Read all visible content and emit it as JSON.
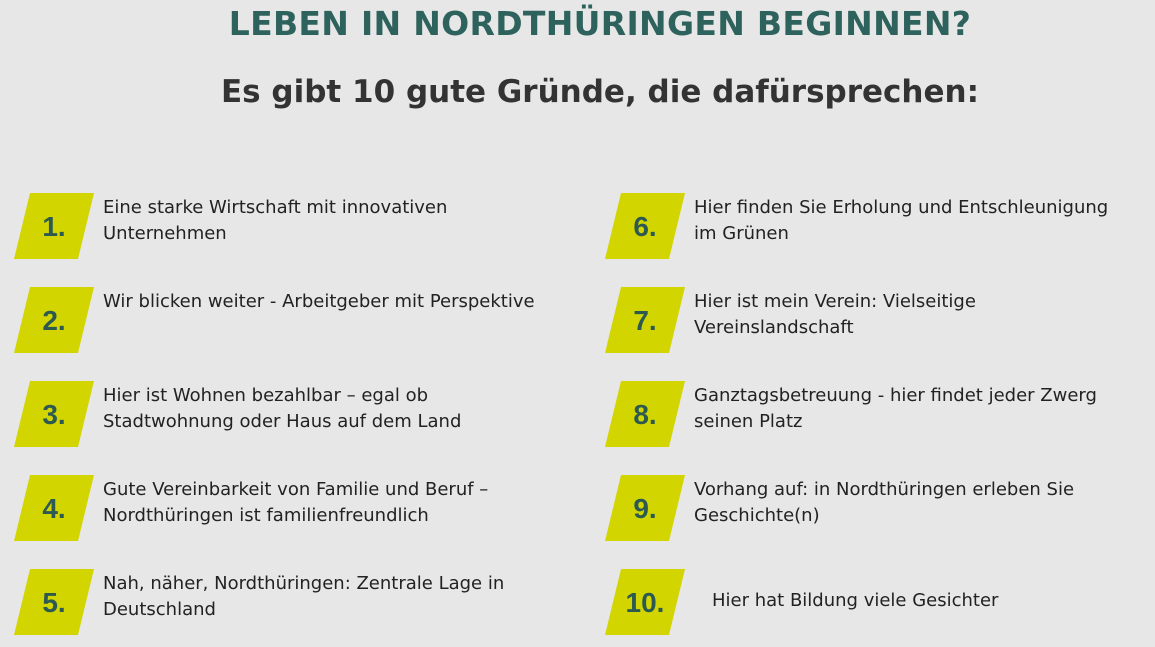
{
  "title": "LEBEN IN NORDTHÜRINGEN BEGINNEN?",
  "subtitle": "Es gibt 10 gute Gründe, die dafürsprechen:",
  "colors": {
    "badge": "#d2d500",
    "number": "#2d5a50",
    "title": "#2e625c",
    "background": "#e7e7e7"
  },
  "reasons": [
    {
      "number": "1.",
      "text": "Eine starke Wirtschaft mit innovativen Unternehmen"
    },
    {
      "number": "2.",
      "text": "Wir blicken weiter - Arbeitgeber mit Perspektive"
    },
    {
      "number": "3.",
      "text": "Hier ist Wohnen bezahlbar – egal ob Stadtwohnung oder Haus auf dem Land"
    },
    {
      "number": "4.",
      "text": "Gute Vereinbarkeit von Familie und Beruf – Nordthüringen ist familienfreundlich"
    },
    {
      "number": "5.",
      "text": "Nah, näher, Nordthüringen: Zentrale Lage in Deutschland"
    },
    {
      "number": "6.",
      "text": "Hier finden Sie Erholung und Entschleunigung im Grünen"
    },
    {
      "number": "7.",
      "text": "Hier ist mein Verein: Vielseitige Vereinslandschaft"
    },
    {
      "number": "8.",
      "text": "Ganztagsbetreuung - hier findet jeder Zwerg seinen Platz"
    },
    {
      "number": "9.",
      "text": "Vorhang auf: in Nordthüringen erleben Sie Geschichte(n)"
    },
    {
      "number": "10.",
      "text": "Hier hat Bildung viele Gesichter"
    }
  ]
}
